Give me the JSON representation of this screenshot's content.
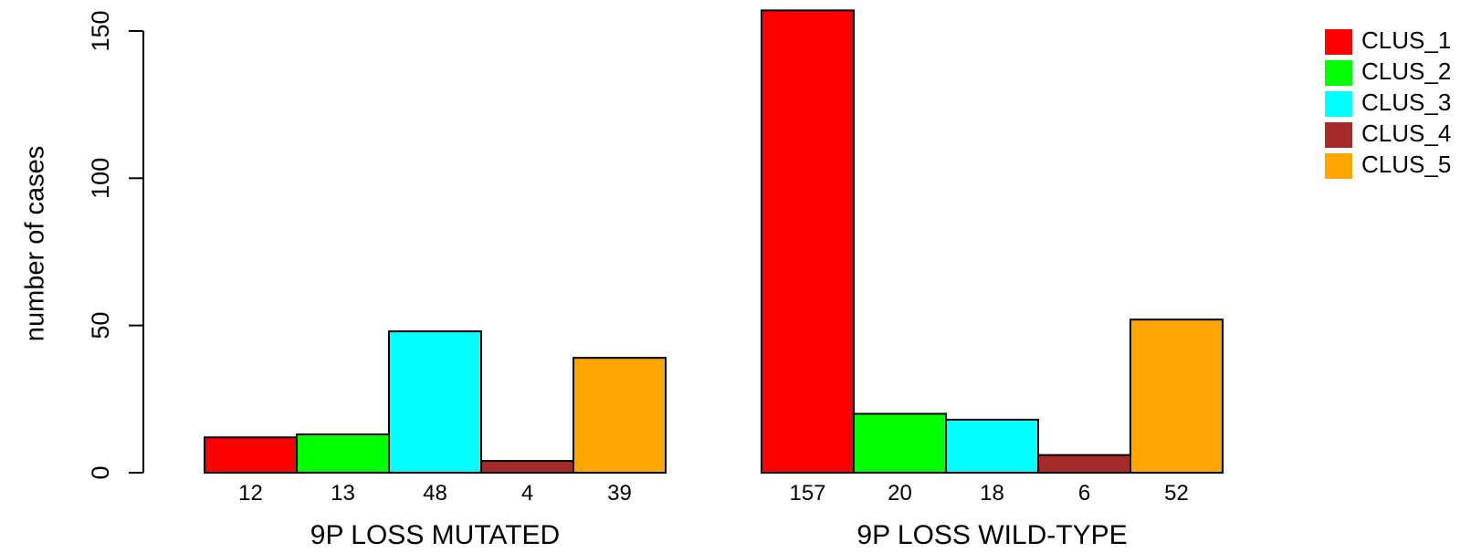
{
  "chart_data": {
    "type": "bar",
    "ylabel": "number of cases",
    "yticks": [
      0,
      50,
      100,
      150
    ],
    "ylim": [
      0,
      160
    ],
    "grid": false,
    "legend_position": "top-right",
    "groups": [
      {
        "label": "9P LOSS MUTATED",
        "values": [
          12,
          13,
          48,
          4,
          39
        ]
      },
      {
        "label": "9P LOSS WILD-TYPE",
        "values": [
          157,
          20,
          18,
          6,
          52
        ]
      }
    ],
    "series": [
      {
        "name": "CLUS_1",
        "color": "#ff0000"
      },
      {
        "name": "CLUS_2",
        "color": "#00ff00"
      },
      {
        "name": "CLUS_3",
        "color": "#00ffff"
      },
      {
        "name": "CLUS_4",
        "color": "#a52a2a"
      },
      {
        "name": "CLUS_5",
        "color": "#ffa500"
      }
    ]
  }
}
